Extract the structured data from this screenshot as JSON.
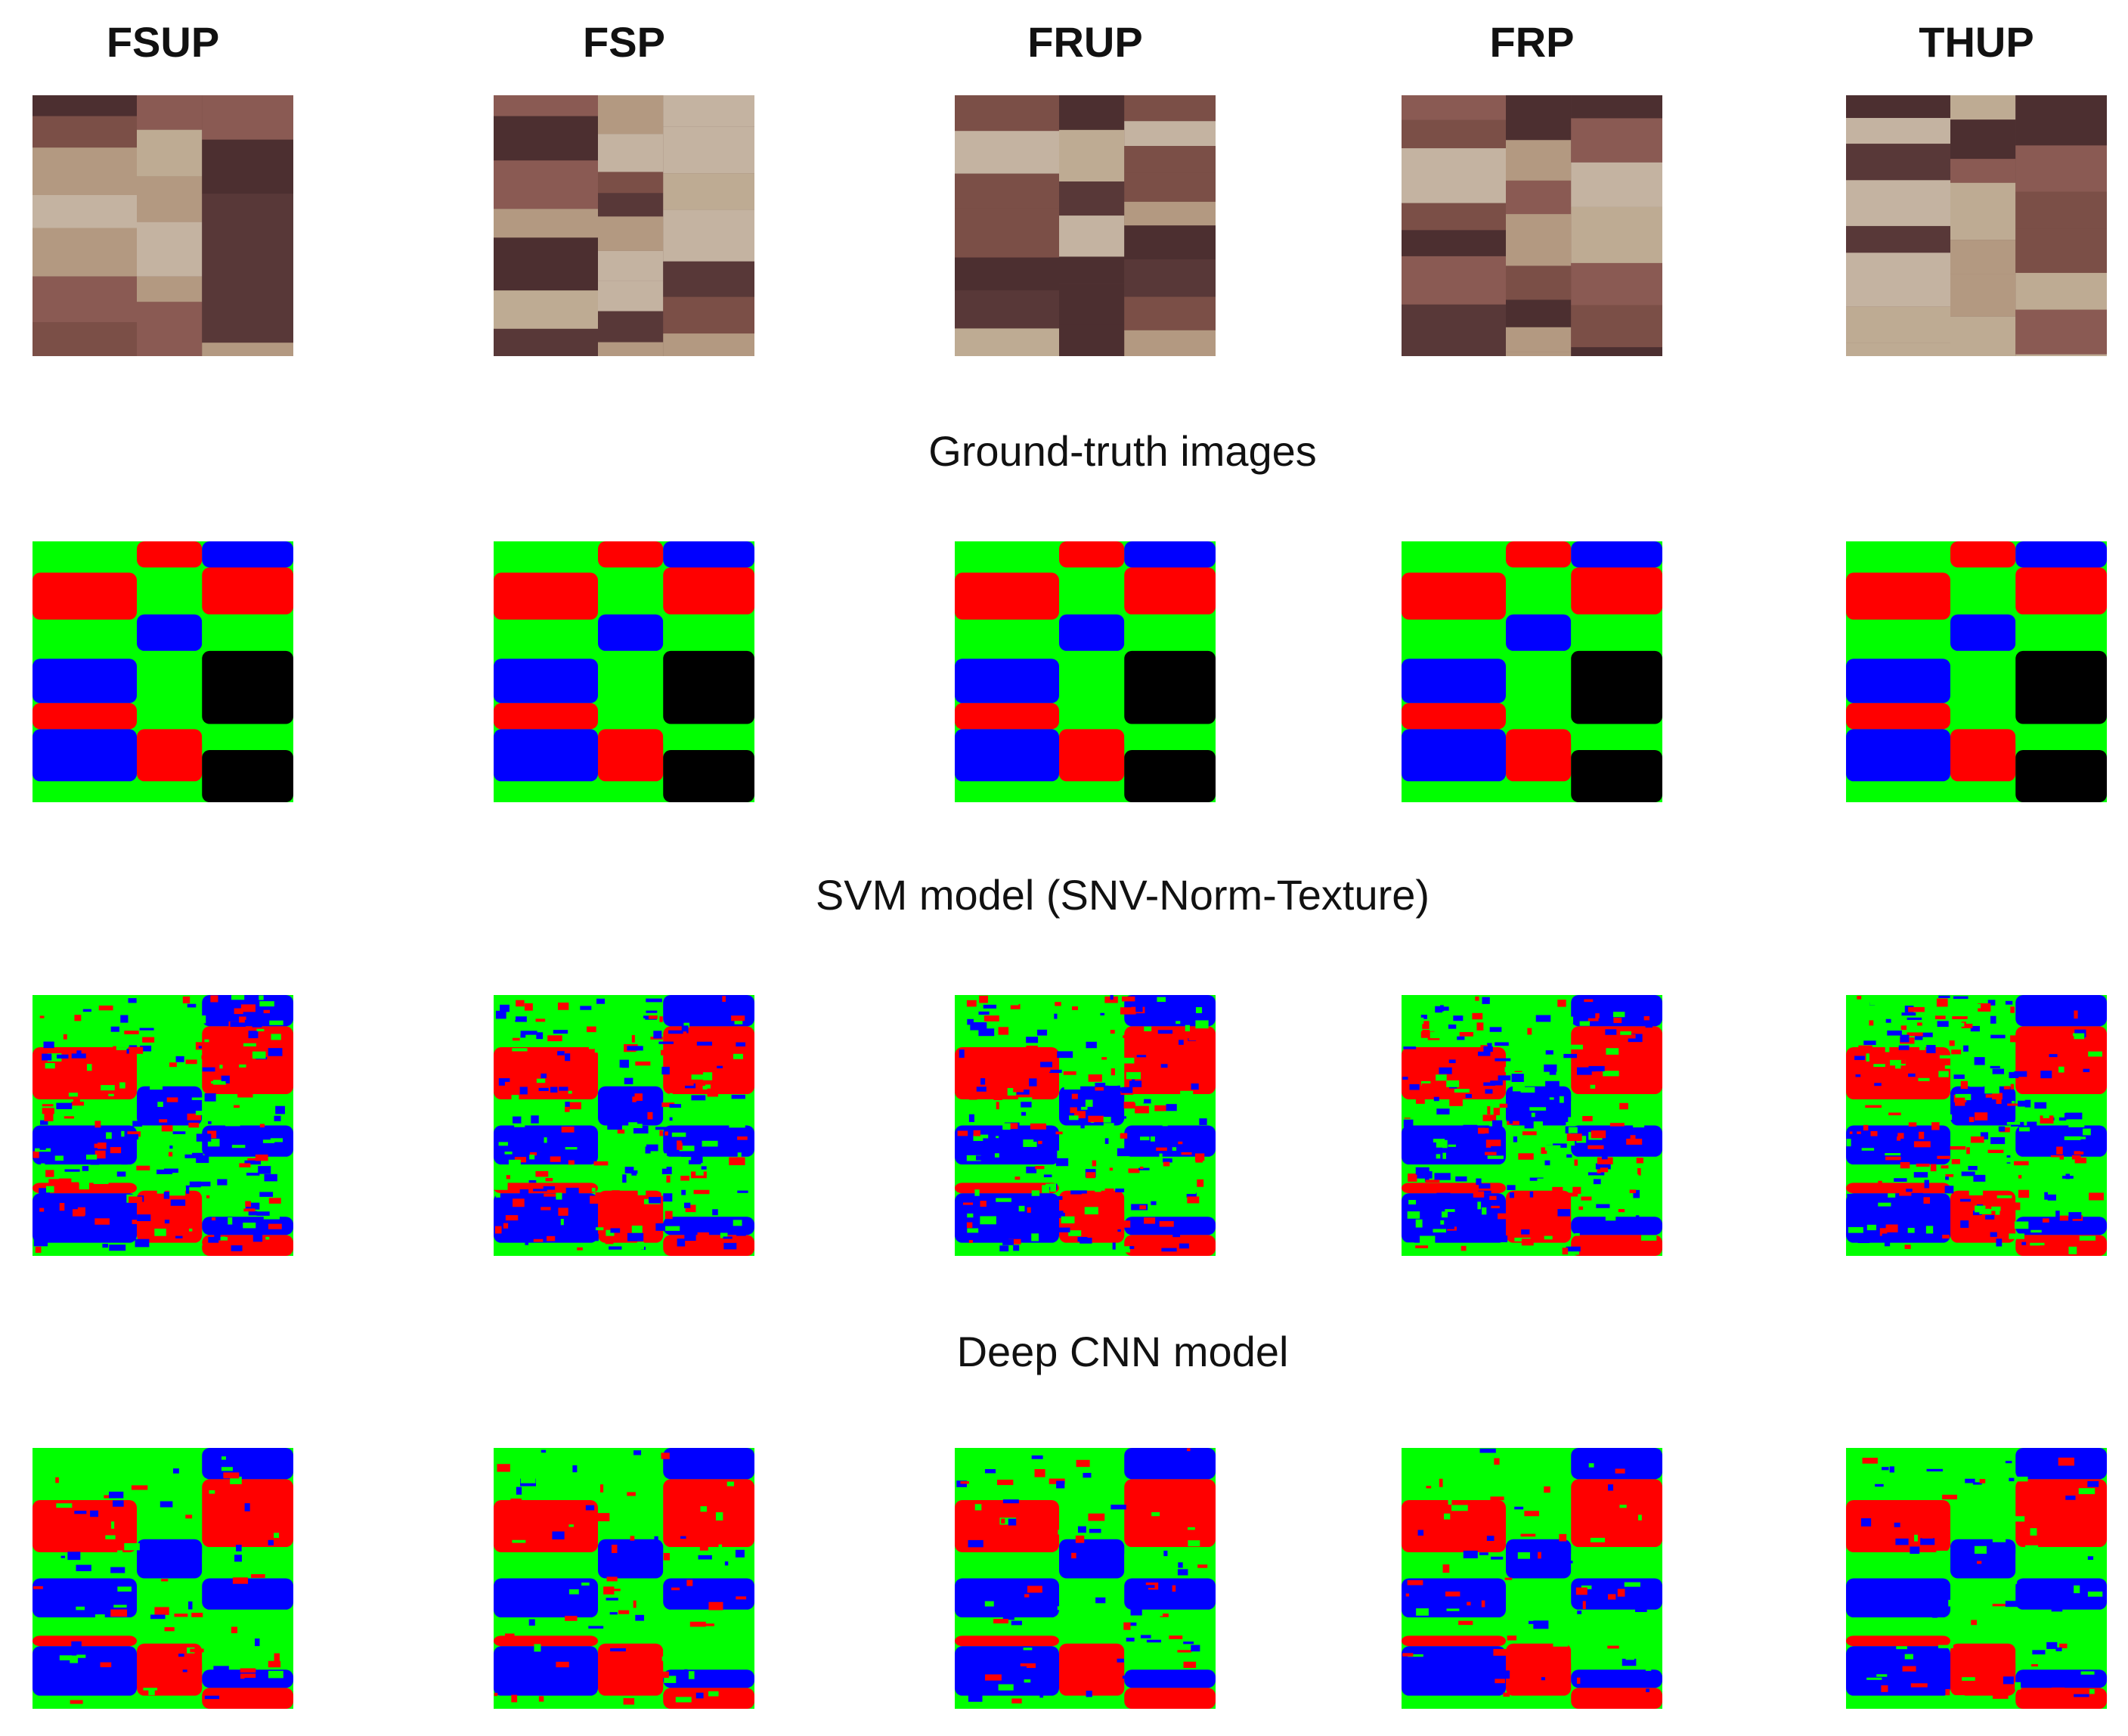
{
  "columns": [
    "FSUP",
    "FSP",
    "FRUP",
    "FRP",
    "THUP"
  ],
  "section_labels": [
    "Ground-truth images",
    "SVM model (SNV-Norm-Texture)",
    "Deep CNN model"
  ]
}
